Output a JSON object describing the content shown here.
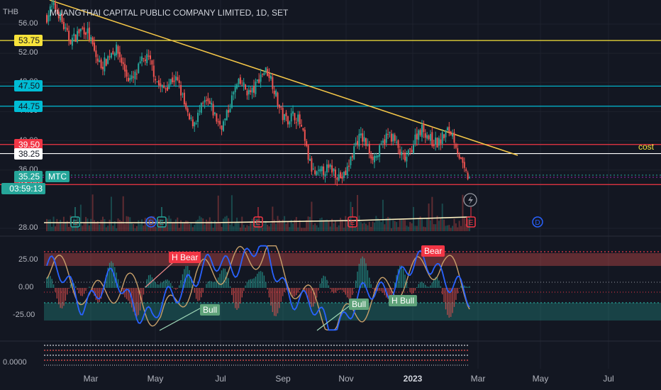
{
  "header": {
    "currency": "THB",
    "title": "MUANGTHAI CAPITAL PUBLIC COMPANY LIMITED, 1D, SET"
  },
  "price_axis": {
    "ticks": [
      "56.00",
      "52.00",
      "48.00",
      "44.00",
      "40.00",
      "36.00",
      "28.00"
    ],
    "levels": [
      {
        "value": "53.75",
        "color": "#f7e33b",
        "text_color": "#131722"
      },
      {
        "value": "47.50",
        "color": "#00bcd4",
        "text_color": "#131722"
      },
      {
        "value": "44.75",
        "color": "#00bcd4",
        "text_color": "#131722"
      },
      {
        "value": "39.50",
        "color": "#f23645",
        "text_color": "#ffffff"
      },
      {
        "value": "38.25",
        "color": "#ffffff",
        "text_color": "#131722"
      },
      {
        "value": "34.00",
        "color": "#f23645",
        "text_color": "#ffffff"
      }
    ],
    "last_price": "35.25",
    "countdown": "03:59:13",
    "symbol": "MTC",
    "cost_label": "cost"
  },
  "osc_axis": {
    "ticks": [
      "25.00",
      "0.00",
      "-25.00"
    ],
    "bottom_tick": "0.0000"
  },
  "time_axis": {
    "labels": [
      "Mar",
      "May",
      "Jul",
      "Sep",
      "Nov",
      "2023",
      "Mar",
      "May",
      "Jul"
    ]
  },
  "events": {
    "earnings": "E",
    "dividend": "D",
    "flash_icon": "lightning-icon"
  },
  "osc_labels": {
    "h_bear": "H Bear",
    "bear": "Bear",
    "bull1": "Bull",
    "bull2": "Bull",
    "h_bull": "H Bull"
  },
  "colors": {
    "bg": "#131722",
    "up": "#26a69a",
    "down": "#ef5350",
    "trend": "#f7c948",
    "osc_blue": "#2962ff",
    "osc_orange": "#c8a06a"
  },
  "chart_data": [
    {
      "type": "line",
      "title": "MUANGTHAI CAPITAL PUBLIC COMPANY LIMITED, 1D, SET",
      "x": [
        "2022-02",
        "2022-03",
        "2022-04",
        "2022-05",
        "2022-06",
        "2022-07",
        "2022-08",
        "2022-09",
        "2022-10",
        "2022-11",
        "2022-12",
        "2023-01",
        "2023-02"
      ],
      "series": [
        {
          "values": [
            57,
            53,
            52,
            49,
            44,
            45,
            48,
            43,
            35,
            38,
            40,
            41.5,
            35.25
          ]
        }
      ],
      "yticks": [
        56,
        52,
        48,
        44,
        40,
        36,
        28
      ],
      "ylim": [
        27,
        58
      ],
      "horizontal_levels": [
        53.75,
        47.5,
        44.75,
        39.5,
        38.25,
        34
      ],
      "last": 35.25
    },
    {
      "type": "line",
      "x": [
        "2022-02",
        "2022-03",
        "2022-04",
        "2022-05",
        "2022-06",
        "2022-07",
        "2022-08",
        "2022-09",
        "2022-10",
        "2022-11",
        "2022-12",
        "2023-01",
        "2023-02"
      ],
      "series": [
        {
          "values": [
            20,
            -10,
            5,
            -30,
            10,
            20,
            35,
            -5,
            -35,
            -10,
            10,
            25,
            -15
          ]
        }
      ],
      "yticks": [
        25,
        0,
        -25
      ],
      "ylim": [
        -40,
        40
      ]
    }
  ]
}
